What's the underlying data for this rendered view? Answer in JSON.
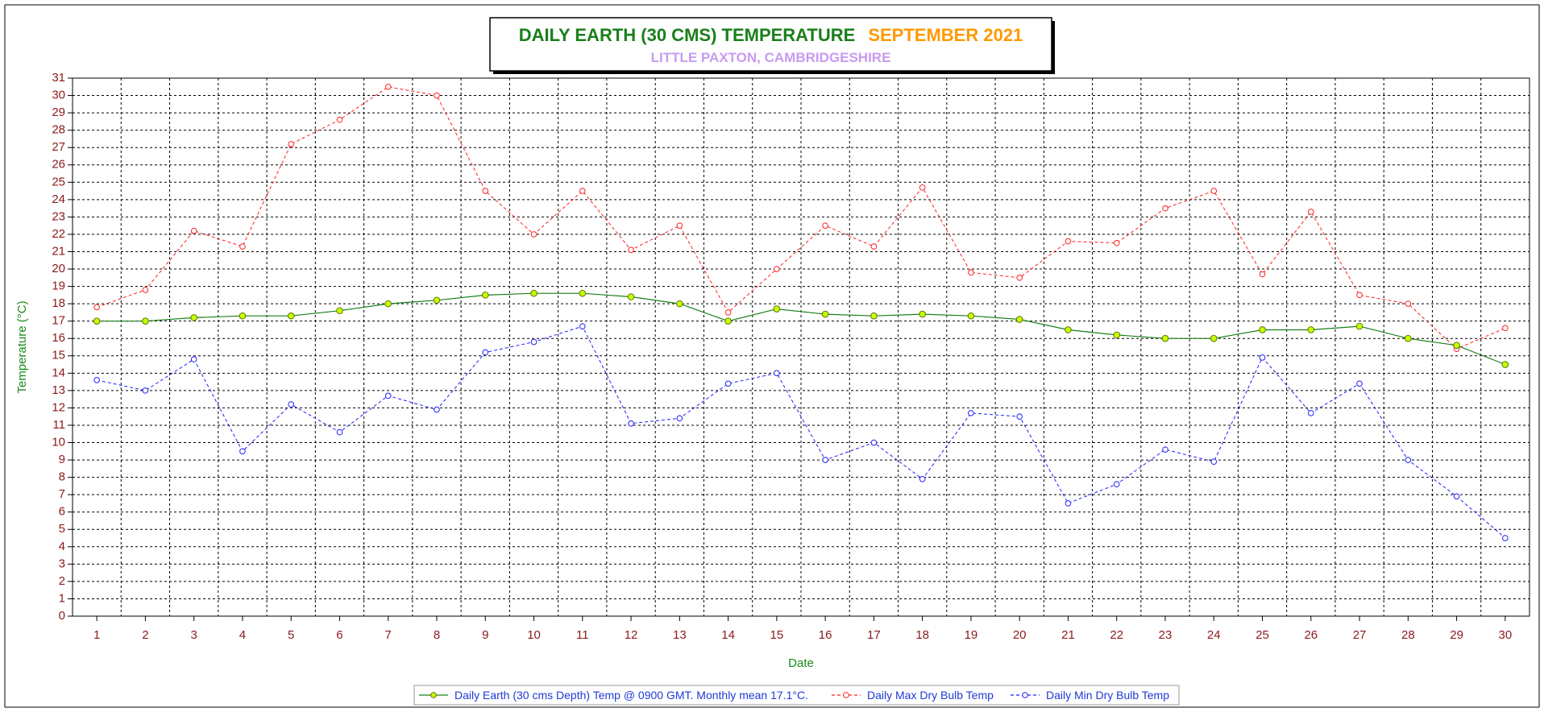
{
  "chart_data": {
    "type": "line",
    "title": "DAILY EARTH (30 CMS) TEMPERATURE",
    "title_month": "SEPTEMBER 2021",
    "subtitle": "LITTLE PAXTON, CAMBRIDGESHIRE",
    "xlabel": "Date",
    "ylabel": "Temperature (°C)",
    "x": [
      1,
      2,
      3,
      4,
      5,
      6,
      7,
      8,
      9,
      10,
      11,
      12,
      13,
      14,
      15,
      16,
      17,
      18,
      19,
      20,
      21,
      22,
      23,
      24,
      25,
      26,
      27,
      28,
      29,
      30
    ],
    "ylim": [
      0,
      31
    ],
    "grid": true,
    "legend_position": "bottom",
    "series": [
      {
        "name": "Daily Earth (30 cms Depth) Temp @ 0900 GMT. Monthly mean 17.1°C.",
        "color": "#1a7f1a",
        "marker_fill": "#ccff00",
        "dashed": false,
        "values": [
          17.0,
          17.0,
          17.2,
          17.3,
          17.3,
          17.6,
          18.0,
          18.2,
          18.5,
          18.6,
          18.6,
          18.4,
          18.0,
          17.0,
          17.7,
          17.4,
          17.3,
          17.4,
          17.3,
          17.1,
          16.5,
          16.2,
          16.0,
          16.0,
          16.5,
          16.5,
          16.7,
          16.0,
          15.6,
          14.5
        ]
      },
      {
        "name": "Daily Max Dry Bulb Temp",
        "color": "#ff2020",
        "marker_fill": "none",
        "dashed": true,
        "values": [
          17.8,
          18.8,
          22.2,
          21.3,
          27.2,
          28.6,
          30.5,
          30.0,
          24.5,
          22.0,
          24.5,
          21.1,
          22.5,
          17.5,
          20.0,
          22.5,
          21.3,
          24.7,
          19.8,
          19.5,
          21.6,
          21.5,
          23.5,
          24.5,
          19.7,
          23.3,
          18.5,
          18.0,
          15.4,
          16.6
        ]
      },
      {
        "name": "Daily Min Dry Bulb Temp",
        "color": "#2020ff",
        "marker_fill": "none",
        "dashed": true,
        "values": [
          13.6,
          13.0,
          14.8,
          9.5,
          12.2,
          10.6,
          12.7,
          11.9,
          15.2,
          15.8,
          16.7,
          11.1,
          11.4,
          13.4,
          14.0,
          9.0,
          10.0,
          7.9,
          11.7,
          11.5,
          6.5,
          7.6,
          9.6,
          8.9,
          14.9,
          11.7,
          13.4,
          9.0,
          6.9,
          4.5
        ]
      }
    ]
  }
}
